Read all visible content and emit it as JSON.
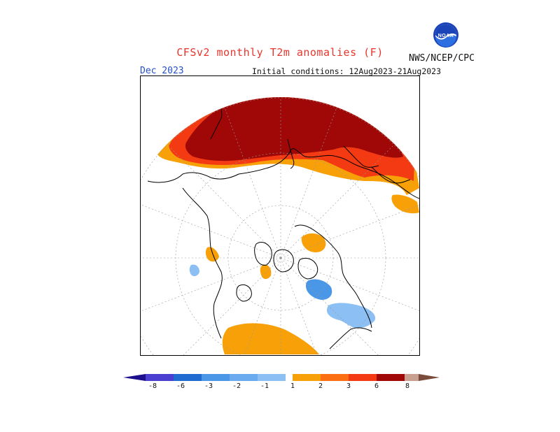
{
  "header": {
    "title": "CFSv2 monthly T2m anomalies (F)",
    "date": "Dec 2023",
    "initial_conditions": "Initial conditions: 12Aug2023-21Aug2023",
    "agency": "NWS/NCEP/CPC",
    "logo_text": "NOAA"
  },
  "legend": {
    "ticks": [
      "-8",
      "-6",
      "-3",
      "-2",
      "-1",
      "1",
      "2",
      "3",
      "6",
      "8"
    ],
    "colors": {
      "lt_-8": "#1e0f8c",
      "-8_-6": "#4a3fd0",
      "-6_-3": "#1f6bd0",
      "-3_-2": "#4a97e8",
      "-2_-1": "#8cbff4",
      "-1_1": "#ffffff",
      "1_2": "#f8a008",
      "2_3": "#fb6e12",
      "3_6": "#f43a12",
      "6_8": "#a00808",
      "8_up": "#c8a090",
      "gt_8": "#7a4a3a"
    }
  }
}
